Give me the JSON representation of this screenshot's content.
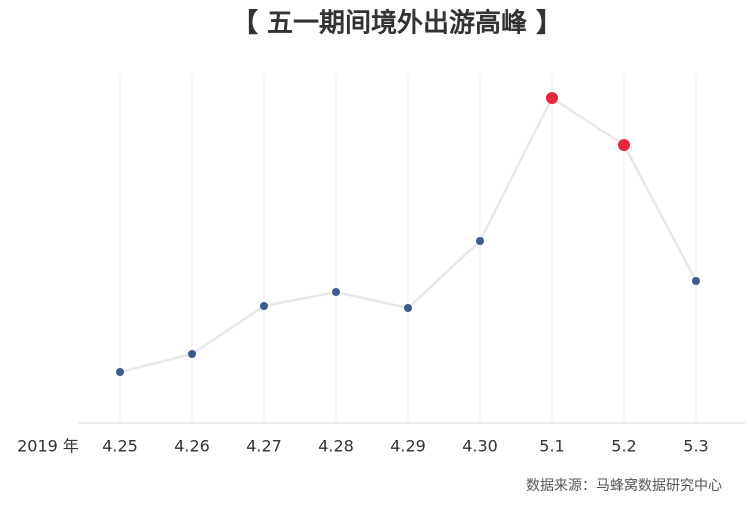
{
  "chart_data": {
    "type": "line",
    "title": "【 五一期间境外出游高峰 】",
    "x_label": "2019 年",
    "source": "数据来源：马蜂窝数据研究中心",
    "categories": [
      "4.25",
      "4.26",
      "4.27",
      "4.28",
      "4.29",
      "4.30",
      "5.1",
      "5.2",
      "5.3"
    ],
    "series": [
      {
        "color": "#e8e8ec",
        "values": [
          51,
          69,
          117,
          131,
          115,
          182,
          325,
          278,
          142
        ],
        "point_colors": [
          "#3d5a8c",
          "#3d5a8c",
          "#3d5a8c",
          "#3d5a8c",
          "#3d5a8c",
          "#3d5a8c",
          "#e8283a",
          "#e8283a",
          "#3d5a8c"
        ]
      }
    ],
    "ylim": [
      0,
      348
    ],
    "grid": true
  }
}
